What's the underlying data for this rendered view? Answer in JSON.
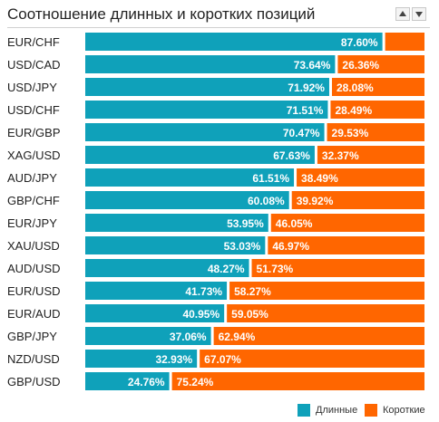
{
  "widget": {
    "title": "Соотношение длинных и коротких позиций",
    "up_button_icon": "arrow-up-icon",
    "down_button_icon": "arrow-down-icon"
  },
  "colors": {
    "long": "#0fa1ba",
    "short": "#ff6600",
    "text_on_bar": "#ffffff",
    "label": "#222222"
  },
  "legend": {
    "long_label": "Длинные",
    "short_label": "Короткие"
  },
  "chart_data": {
    "type": "bar",
    "stacked": true,
    "orientation": "horizontal",
    "categories": [
      "EUR/CHF",
      "USD/CAD",
      "USD/JPY",
      "USD/CHF",
      "EUR/GBP",
      "XAG/USD",
      "AUD/JPY",
      "GBP/CHF",
      "EUR/JPY",
      "XAU/USD",
      "AUD/USD",
      "EUR/USD",
      "EUR/AUD",
      "GBP/JPY",
      "NZD/USD",
      "GBP/USD"
    ],
    "series": [
      {
        "name": "Длинные",
        "values": [
          87.6,
          73.64,
          71.92,
          71.51,
          70.47,
          67.63,
          61.51,
          60.08,
          53.95,
          53.03,
          48.27,
          41.73,
          40.95,
          37.06,
          32.93,
          24.76
        ]
      },
      {
        "name": "Короткие",
        "values": [
          12.4,
          26.36,
          28.08,
          28.49,
          29.53,
          32.37,
          38.49,
          39.92,
          46.05,
          46.97,
          51.73,
          58.27,
          59.05,
          62.94,
          67.07,
          75.24
        ]
      }
    ],
    "value_labels": {
      "long": [
        "87.60%",
        "73.64%",
        "71.92%",
        "71.51%",
        "70.47%",
        "67.63%",
        "61.51%",
        "60.08%",
        "53.95%",
        "53.03%",
        "48.27%",
        "41.73%",
        "40.95%",
        "37.06%",
        "32.93%",
        "24.76%"
      ],
      "short": [
        "",
        "26.36%",
        "28.08%",
        "28.49%",
        "29.53%",
        "32.37%",
        "38.49%",
        "39.92%",
        "46.05%",
        "46.97%",
        "51.73%",
        "58.27%",
        "59.05%",
        "62.94%",
        "67.07%",
        "75.24%"
      ]
    },
    "xlim": [
      0,
      100
    ],
    "grid": false,
    "legend_position": "bottom-right"
  }
}
